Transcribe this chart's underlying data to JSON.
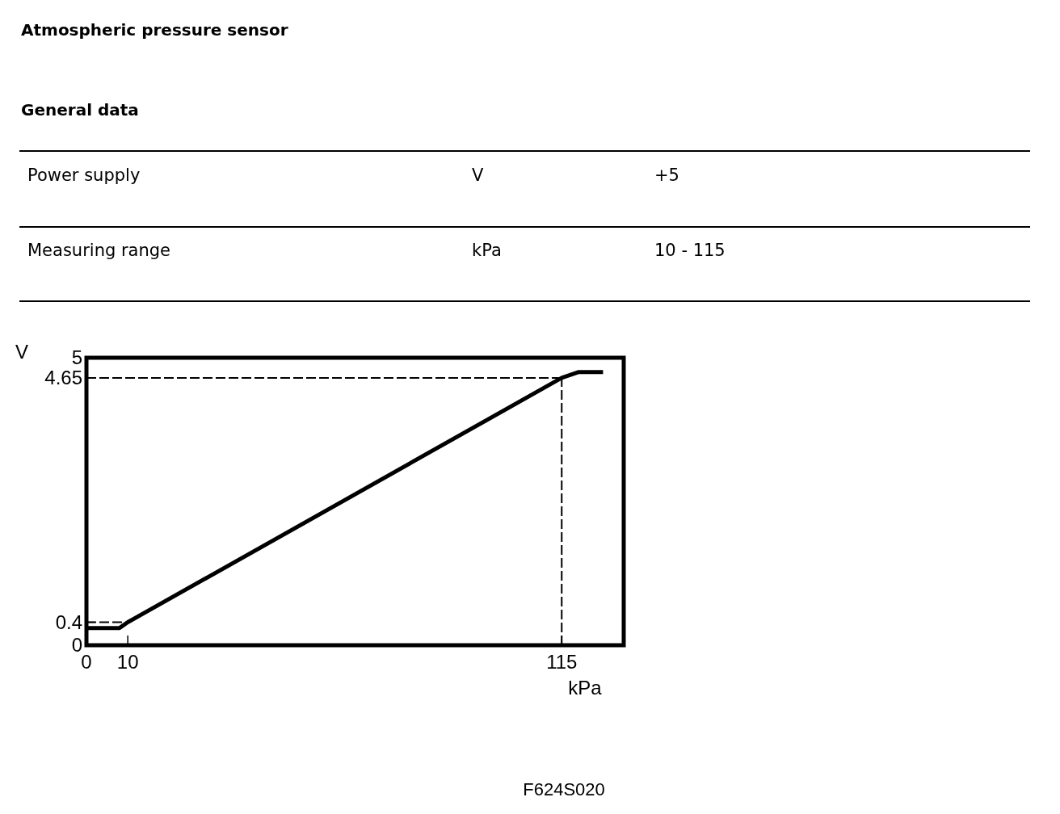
{
  "chart_data": {
    "type": "line",
    "title": "Atmospheric pressure sensor",
    "subtitle": "General data",
    "annotations": [
      "Power supply",
      "V",
      "+5",
      "Measuring range",
      "kPa",
      "10 - 115",
      "F624S020"
    ],
    "xlabel": "kPa",
    "ylabel": "V",
    "x": [
      0,
      8,
      10,
      115,
      119,
      125
    ],
    "series": [
      {
        "color": "#000000",
        "values": [
          0.3,
          0.3,
          0.4,
          4.65,
          4.75,
          4.75
        ]
      },
      {
        "type": "line",
        "color": "#000000",
        "x": [
          0,
          10
        ],
        "values": [
          0.4,
          0.4
        ],
        "line_style": "dashed"
      }
    ],
    "xlim": [
      0,
      130
    ],
    "ylim": [
      0,
      5
    ],
    "xticks": [
      0,
      10,
      115
    ],
    "yticks": [
      0,
      0.4,
      4.65,
      5
    ],
    "ref_lines": [
      {
        "axis": "y",
        "value": 4.65,
        "line_style": "dashed"
      },
      {
        "axis": "x",
        "value": 115,
        "line_style": "dashed"
      }
    ],
    "grid": false,
    "marker": "none",
    "line_style": "solid"
  }
}
